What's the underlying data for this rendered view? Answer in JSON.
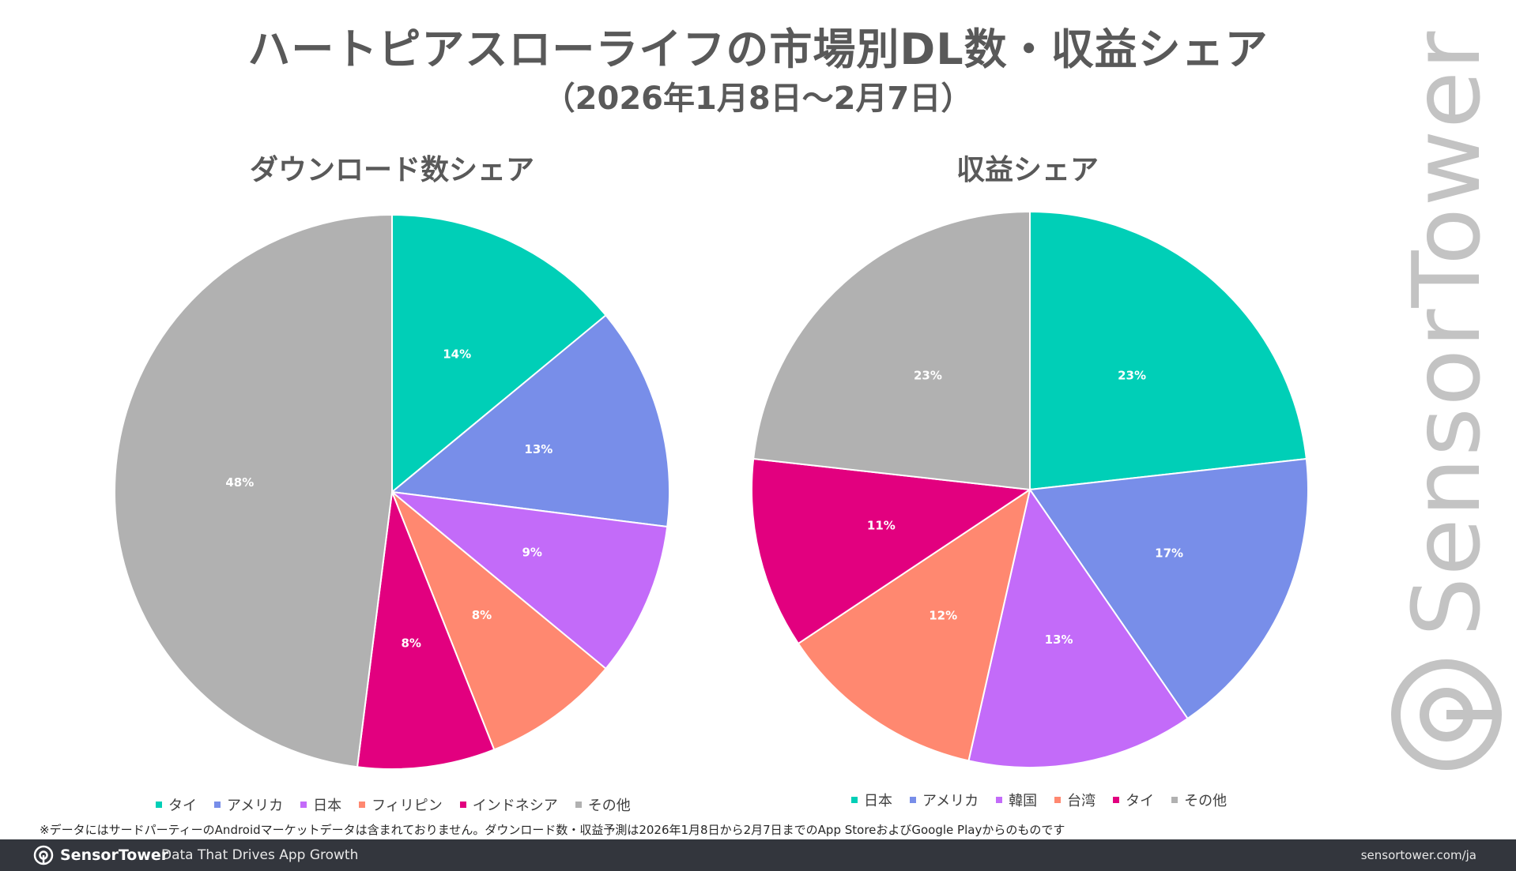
{
  "title": "ハートピアスローライフの市場別DL数・収益シェア",
  "subtitle": "（2026年1月8日〜2月7日）",
  "chart_data": [
    {
      "type": "pie",
      "title": "ダウンロード数シェア",
      "categories": [
        "タイ",
        "アメリカ",
        "日本",
        "フィリピン",
        "インドネシア",
        "その他"
      ],
      "values": [
        14,
        13,
        9,
        8,
        8,
        48
      ],
      "labels": [
        "14%",
        "13%",
        "9%",
        "8%",
        "8%",
        "48%"
      ],
      "colors": [
        "#00cfb7",
        "#788ee9",
        "#c36bf9",
        "#ff8870",
        "#e2007f",
        "#b1b1b1"
      ],
      "legend_position": "bottom"
    },
    {
      "type": "pie",
      "title": "収益シェア",
      "categories": [
        "日本",
        "アメリカ",
        "韓国",
        "台湾",
        "タイ",
        "その他"
      ],
      "values": [
        23,
        17,
        13,
        12,
        11,
        23
      ],
      "labels": [
        "23%",
        "17%",
        "13%",
        "12%",
        "11%",
        "23%"
      ],
      "colors": [
        "#00cfb7",
        "#788ee9",
        "#c36bf9",
        "#ff8870",
        "#e2007f",
        "#b1b1b1"
      ],
      "legend_position": "bottom"
    }
  ],
  "note": "※データにはサードパーティーのAndroidマーケットデータは含まれておりません。ダウンロード数・収益予測は2026年1月8日から2月7日までのApp StoreおよびGoogle Playからのものです",
  "footer": {
    "brand": "SensorTower",
    "tagline": "Data That Drives App Growth",
    "url": "sensortower.com/ja"
  },
  "watermark": "SensorTower",
  "icons": {
    "logo": "sensortower-logo-icon"
  }
}
